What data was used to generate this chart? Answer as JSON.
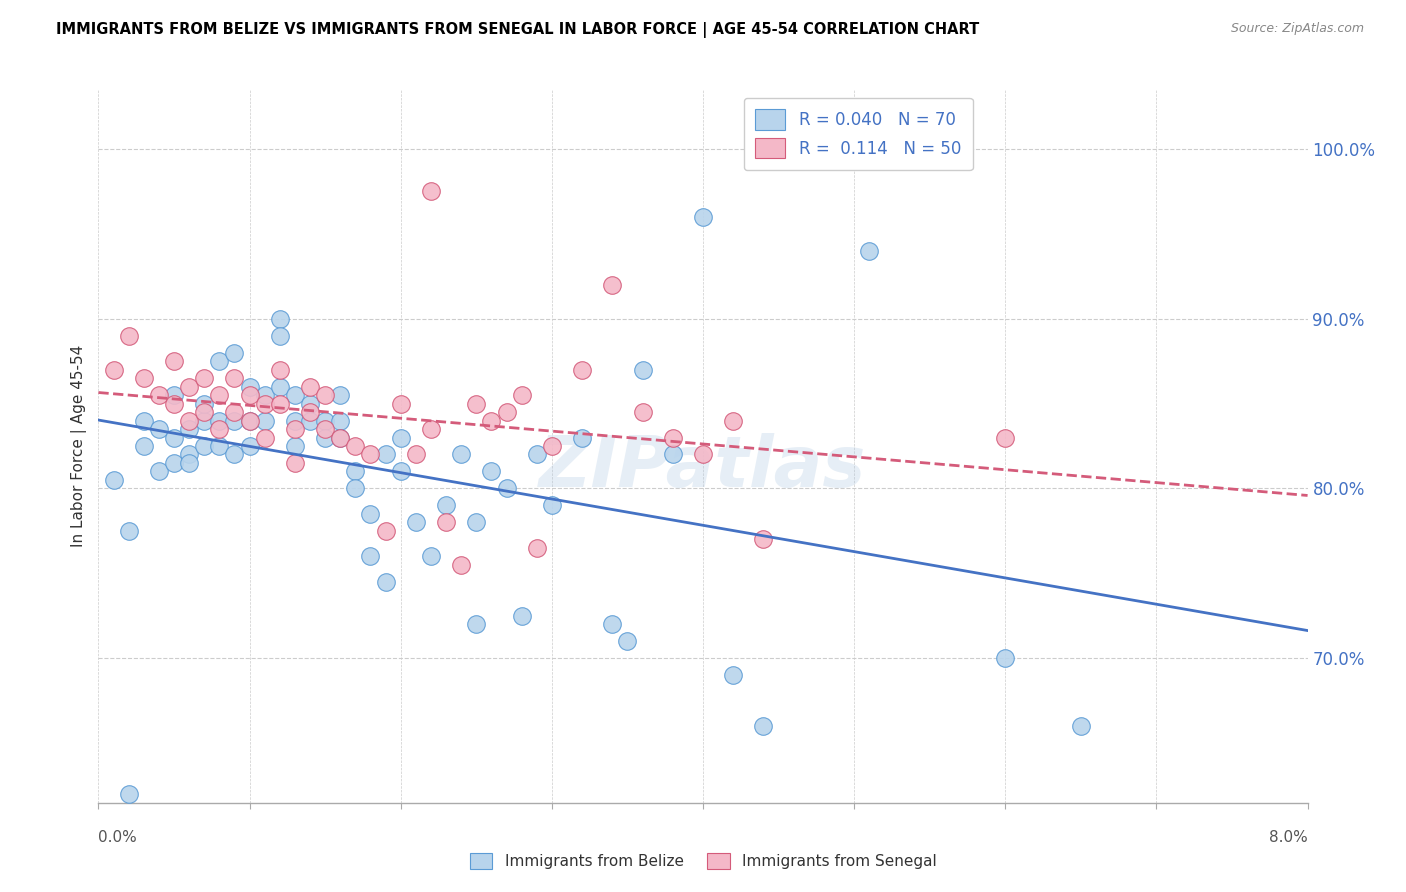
{
  "title": "IMMIGRANTS FROM BELIZE VS IMMIGRANTS FROM SENEGAL IN LABOR FORCE | AGE 45-54 CORRELATION CHART",
  "source": "Source: ZipAtlas.com",
  "ylabel": "In Labor Force | Age 45-54",
  "xlim": [
    0.0,
    0.08
  ],
  "ylim": [
    0.615,
    1.035
  ],
  "ytick_values": [
    0.7,
    0.8,
    0.9,
    1.0
  ],
  "ytick_labels": [
    "70.0%",
    "80.0%",
    "90.0%",
    "100.0%"
  ],
  "legend_r_belize": "0.040",
  "legend_n_belize": "70",
  "legend_r_senegal": "0.114",
  "legend_n_senegal": "50",
  "color_belize_face": "#b8d4ec",
  "color_belize_edge": "#5b9bd5",
  "color_senegal_face": "#f4b8c8",
  "color_senegal_edge": "#d45b7a",
  "line_color_belize": "#4472c4",
  "line_color_senegal": "#d45b7a",
  "watermark": "ZIPatlas",
  "belize_x": [
    0.001,
    0.002,
    0.003,
    0.003,
    0.004,
    0.004,
    0.005,
    0.005,
    0.005,
    0.006,
    0.006,
    0.006,
    0.007,
    0.007,
    0.007,
    0.008,
    0.008,
    0.008,
    0.009,
    0.009,
    0.009,
    0.01,
    0.01,
    0.01,
    0.011,
    0.011,
    0.012,
    0.012,
    0.012,
    0.013,
    0.013,
    0.013,
    0.014,
    0.014,
    0.015,
    0.015,
    0.016,
    0.016,
    0.016,
    0.017,
    0.017,
    0.018,
    0.018,
    0.019,
    0.019,
    0.02,
    0.02,
    0.021,
    0.022,
    0.023,
    0.024,
    0.025,
    0.025,
    0.026,
    0.027,
    0.028,
    0.029,
    0.03,
    0.032,
    0.034,
    0.035,
    0.036,
    0.038,
    0.04,
    0.042,
    0.044,
    0.051,
    0.06,
    0.065,
    0.002
  ],
  "belize_y": [
    0.805,
    0.775,
    0.825,
    0.84,
    0.835,
    0.81,
    0.83,
    0.815,
    0.855,
    0.82,
    0.835,
    0.815,
    0.84,
    0.825,
    0.85,
    0.875,
    0.84,
    0.825,
    0.84,
    0.88,
    0.82,
    0.86,
    0.84,
    0.825,
    0.855,
    0.84,
    0.9,
    0.89,
    0.86,
    0.84,
    0.855,
    0.825,
    0.85,
    0.84,
    0.84,
    0.83,
    0.84,
    0.855,
    0.83,
    0.81,
    0.8,
    0.785,
    0.76,
    0.745,
    0.82,
    0.81,
    0.83,
    0.78,
    0.76,
    0.79,
    0.82,
    0.78,
    0.72,
    0.81,
    0.8,
    0.725,
    0.82,
    0.79,
    0.83,
    0.72,
    0.71,
    0.87,
    0.82,
    0.96,
    0.69,
    0.66,
    0.94,
    0.7,
    0.66,
    0.62
  ],
  "senegal_x": [
    0.001,
    0.002,
    0.003,
    0.004,
    0.005,
    0.005,
    0.006,
    0.006,
    0.007,
    0.007,
    0.008,
    0.008,
    0.009,
    0.009,
    0.01,
    0.01,
    0.011,
    0.011,
    0.012,
    0.012,
    0.013,
    0.013,
    0.014,
    0.014,
    0.015,
    0.015,
    0.016,
    0.017,
    0.018,
    0.019,
    0.02,
    0.021,
    0.022,
    0.023,
    0.024,
    0.025,
    0.026,
    0.027,
    0.028,
    0.029,
    0.03,
    0.032,
    0.034,
    0.036,
    0.038,
    0.04,
    0.042,
    0.044,
    0.06,
    0.022
  ],
  "senegal_y": [
    0.87,
    0.89,
    0.865,
    0.855,
    0.875,
    0.85,
    0.86,
    0.84,
    0.865,
    0.845,
    0.855,
    0.835,
    0.845,
    0.865,
    0.84,
    0.855,
    0.85,
    0.83,
    0.85,
    0.87,
    0.835,
    0.815,
    0.845,
    0.86,
    0.835,
    0.855,
    0.83,
    0.825,
    0.82,
    0.775,
    0.85,
    0.82,
    0.835,
    0.78,
    0.755,
    0.85,
    0.84,
    0.845,
    0.855,
    0.765,
    0.825,
    0.87,
    0.92,
    0.845,
    0.83,
    0.82,
    0.84,
    0.77,
    0.83,
    0.975
  ]
}
